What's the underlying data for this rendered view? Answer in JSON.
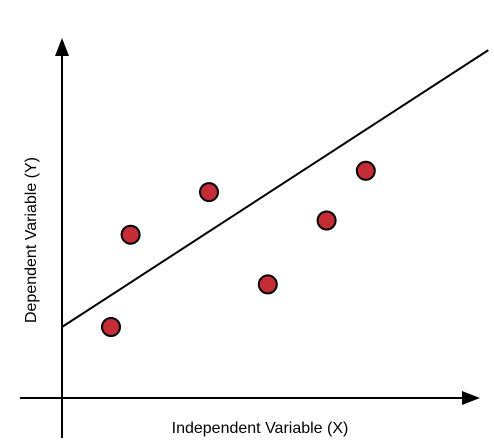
{
  "chart_data": {
    "type": "scatter",
    "xlabel": "Independent Variable (X)",
    "ylabel": "Dependent Variable (Y)",
    "points": [
      {
        "x": 1.0,
        "y": 1.0
      },
      {
        "x": 1.4,
        "y": 2.3
      },
      {
        "x": 3.0,
        "y": 2.9
      },
      {
        "x": 4.2,
        "y": 1.6
      },
      {
        "x": 5.4,
        "y": 2.5
      },
      {
        "x": 6.2,
        "y": 3.2
      }
    ],
    "trend_line": {
      "x": [
        0,
        8.7
      ],
      "y": [
        1.0,
        4.9
      ]
    },
    "xlim": [
      0,
      8.5
    ],
    "ylim": [
      0,
      4.8
    ],
    "grid": false,
    "legend": false,
    "point_color": "#c42c36",
    "point_edge_color": "#000000",
    "axis_color": "#000000",
    "line_color": "#000000"
  }
}
